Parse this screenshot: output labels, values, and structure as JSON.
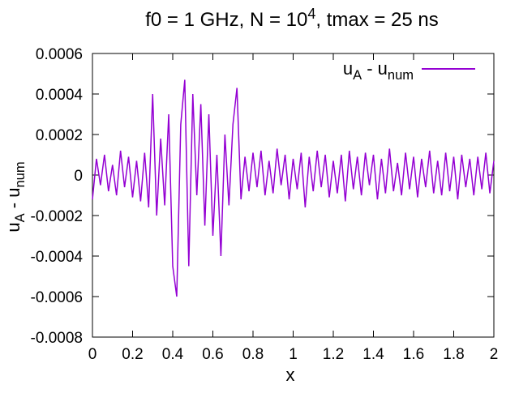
{
  "chart_data": {
    "type": "line",
    "title": [
      {
        "text": "f0 = 1 GHz, N = 10"
      },
      {
        "text": "4",
        "shift": "sup"
      },
      {
        "text": ", tmax = 25 ns"
      }
    ],
    "xlabel": "x",
    "ylabel": [
      {
        "text": "u"
      },
      {
        "text": "A",
        "shift": "sub"
      },
      {
        "text": " - u"
      },
      {
        "text": "num",
        "shift": "sub"
      }
    ],
    "xlim": [
      0,
      2
    ],
    "ylim": [
      -0.0008,
      0.0006
    ],
    "xticks": [
      0,
      0.2,
      0.4,
      0.6,
      0.8,
      1,
      1.2,
      1.4,
      1.6,
      1.8,
      2
    ],
    "yticks": [
      -0.0008,
      -0.0006,
      -0.0004,
      -0.0002,
      0,
      0.0002,
      0.0004,
      0.0006
    ],
    "legend": "top-right",
    "x": [
      0,
      0.02,
      0.04,
      0.06,
      0.08,
      0.1,
      0.12,
      0.14,
      0.16,
      0.18,
      0.2,
      0.22,
      0.24,
      0.26,
      0.28,
      0.3,
      0.32,
      0.34,
      0.36,
      0.38,
      0.4,
      0.42,
      0.44,
      0.46,
      0.48,
      0.5,
      0.52,
      0.54,
      0.56,
      0.58,
      0.6,
      0.62,
      0.64,
      0.66,
      0.68,
      0.7,
      0.72,
      0.74,
      0.76,
      0.78,
      0.8,
      0.82,
      0.84,
      0.86,
      0.88,
      0.9,
      0.92,
      0.94,
      0.96,
      0.98,
      1,
      1.02,
      1.04,
      1.06,
      1.08,
      1.1,
      1.12,
      1.14,
      1.16,
      1.18,
      1.2,
      1.22,
      1.24,
      1.26,
      1.28,
      1.3,
      1.32,
      1.34,
      1.36,
      1.38,
      1.4,
      1.42,
      1.44,
      1.46,
      1.48,
      1.5,
      1.52,
      1.54,
      1.56,
      1.58,
      1.6,
      1.62,
      1.64,
      1.66,
      1.68,
      1.7,
      1.72,
      1.74,
      1.76,
      1.78,
      1.8,
      1.82,
      1.84,
      1.86,
      1.88,
      1.9,
      1.92,
      1.94,
      1.96,
      1.98,
      2
    ],
    "series": [
      {
        "name": [
          {
            "text": "u"
          },
          {
            "text": "A",
            "shift": "sub"
          },
          {
            "text": " - u"
          },
          {
            "text": "num",
            "shift": "sub"
          }
        ],
        "color": "#9400d3",
        "values": [
          -0.00012,
          8e-05,
          -5e-05,
          0.0001,
          -8e-05,
          5e-05,
          -0.0001,
          0.00012,
          -6e-05,
          9e-05,
          -0.00011,
          7e-05,
          -0.00013,
          0.00011,
          -0.00016,
          0.0004,
          -0.0002,
          0.00018,
          -0.00015,
          0.0003,
          -0.00045,
          -0.0006,
          0.00025,
          0.00047,
          -0.00045,
          0.0004,
          -0.0001,
          0.00035,
          -0.00025,
          0.0003,
          -0.0003,
          0.0001,
          -0.0004,
          0.0002,
          -0.00015,
          0.00025,
          0.00043,
          -0.00012,
          9e-05,
          -8e-05,
          0.00011,
          -6e-05,
          0.00012,
          -0.0001,
          7e-05,
          -9e-05,
          0.00013,
          -5e-05,
          0.0001,
          -0.00012,
          8e-05,
          -7e-05,
          0.00011,
          -0.00016,
          9e-05,
          -8e-05,
          0.00012,
          -6e-05,
          0.0001,
          -0.00011,
          7e-05,
          -9e-05,
          0.0001,
          -0.00013,
          0.00012,
          -7e-05,
          9e-05,
          -0.0001,
          0.00011,
          -5e-05,
          0.0001,
          -0.00012,
          8e-05,
          -9e-05,
          0.00013,
          -8e-05,
          6e-05,
          -0.0001,
          0.00011,
          -7e-05,
          9e-05,
          -0.00011,
          8e-05,
          -6e-05,
          0.00012,
          -9e-05,
          7e-05,
          -0.0001,
          0.00011,
          -8e-05,
          9e-05,
          -0.00012,
          0.0001,
          -6e-05,
          8e-05,
          -0.0001,
          9e-05,
          -7e-05,
          0.00011,
          -9e-05,
          7e-05
        ]
      }
    ]
  }
}
